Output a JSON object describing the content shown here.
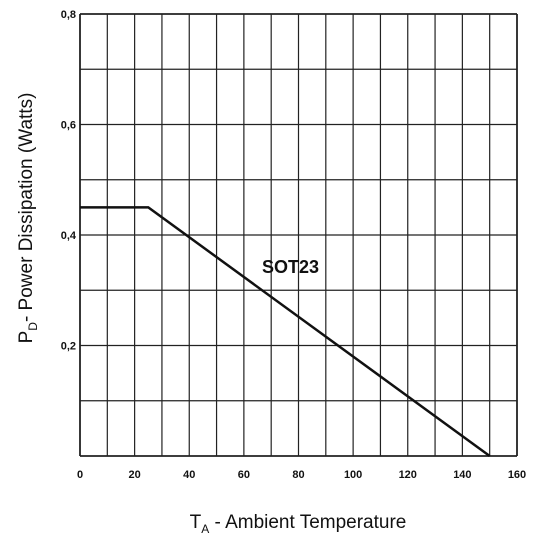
{
  "chart_data": {
    "type": "line",
    "series": [
      {
        "x": [
          0,
          25,
          150
        ],
        "y": [
          0.45,
          0.45,
          0
        ]
      }
    ],
    "annotation": "SOT23",
    "xlabel_main": "T",
    "xlabel_sub": "A",
    "xlabel_rest": " - Ambient Temperature",
    "ylabel_main": "P",
    "ylabel_sub": "D",
    "ylabel_rest": "- Power Dissipation (Watts)",
    "xlim": [
      0,
      160
    ],
    "ylim": [
      0,
      0.8
    ],
    "x_ticks": [
      "0",
      "20",
      "40",
      "60",
      "80",
      "100",
      "120",
      "140",
      "160"
    ],
    "y_ticks": [
      "0,2",
      "0,4",
      "0,6",
      "0,8"
    ],
    "grid": true,
    "line_color": "#111111"
  }
}
